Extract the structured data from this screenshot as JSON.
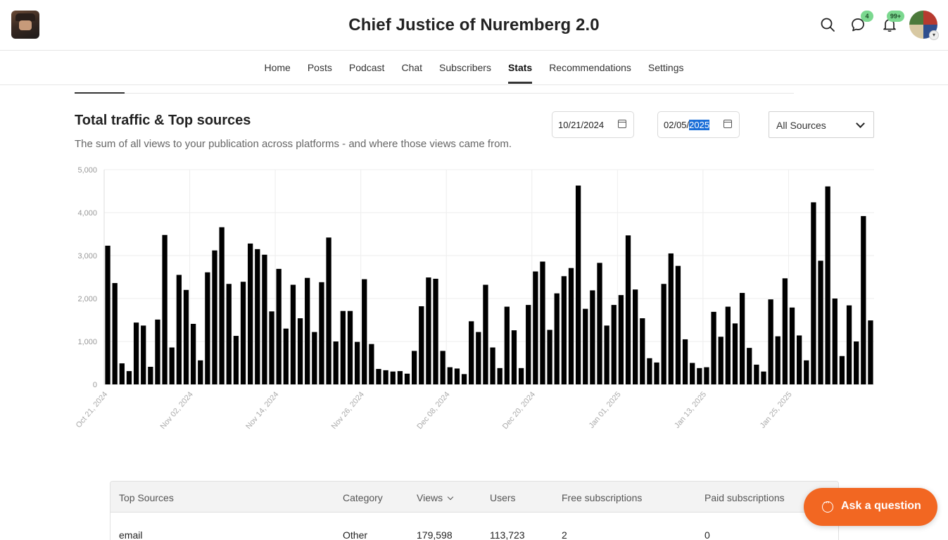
{
  "header": {
    "title": "Chief Justice of Nuremberg 2.0",
    "chat_badge": "4",
    "notif_badge": "99+"
  },
  "nav": {
    "items": [
      "Home",
      "Posts",
      "Podcast",
      "Chat",
      "Subscribers",
      "Stats",
      "Recommendations",
      "Settings"
    ],
    "active": "Stats"
  },
  "section": {
    "title": "Total traffic & Top sources",
    "subtitle": "The sum of all views to your publication across platforms - and where those views came from.",
    "start_date": "10/21/2024",
    "end_date_prefix": "02/05/",
    "end_date_year": "2025",
    "source_filter": "All Sources"
  },
  "chart_data": {
    "type": "bar",
    "ylim": [
      0,
      5000
    ],
    "yticks": [
      "0",
      "1,000",
      "2,000",
      "3,000",
      "4,000",
      "5,000"
    ],
    "xtick_labels": [
      "Oct 21, 2024",
      "Nov 02, 2024",
      "Nov 14, 2024",
      "Nov 26, 2024",
      "Dec 08, 2024",
      "Dec 20, 2024",
      "Jan 01, 2025",
      "Jan 13, 2025",
      "Jan 25, 2025"
    ],
    "grid": true,
    "bar_color": "#000000",
    "start_date": "2024-10-21",
    "values": [
      3230,
      2360,
      490,
      310,
      1440,
      1370,
      410,
      1510,
      3480,
      860,
      2550,
      2200,
      1410,
      560,
      2610,
      3120,
      3660,
      2340,
      1130,
      2390,
      3280,
      3150,
      3020,
      1700,
      2690,
      1300,
      2320,
      1540,
      2480,
      1220,
      2380,
      3420,
      1000,
      1710,
      1710,
      990,
      2450,
      940,
      360,
      330,
      300,
      310,
      250,
      780,
      1820,
      2490,
      2460,
      780,
      400,
      370,
      240,
      1470,
      1220,
      2320,
      860,
      380,
      1810,
      1260,
      380,
      1850,
      2630,
      2860,
      1270,
      2120,
      2520,
      2710,
      4630,
      1760,
      2190,
      2830,
      1370,
      1850,
      2080,
      3470,
      2210,
      1540,
      610,
      510,
      2340,
      3050,
      2760,
      1050,
      500,
      380,
      400,
      1690,
      1110,
      1810,
      1420,
      2130,
      850,
      460,
      300,
      1980,
      1120,
      2470,
      1790,
      1140,
      560,
      4240,
      2880,
      4610,
      2000,
      660,
      1840,
      1000,
      3920,
      1490
    ]
  },
  "table": {
    "headers": [
      "Top Sources",
      "Category",
      "Views",
      "Users",
      "Free subscriptions",
      "Paid subscriptions"
    ],
    "rows": [
      [
        "email",
        "Other",
        "179,598",
        "113,723",
        "2",
        "0"
      ]
    ]
  },
  "ask_button": "Ask a question"
}
